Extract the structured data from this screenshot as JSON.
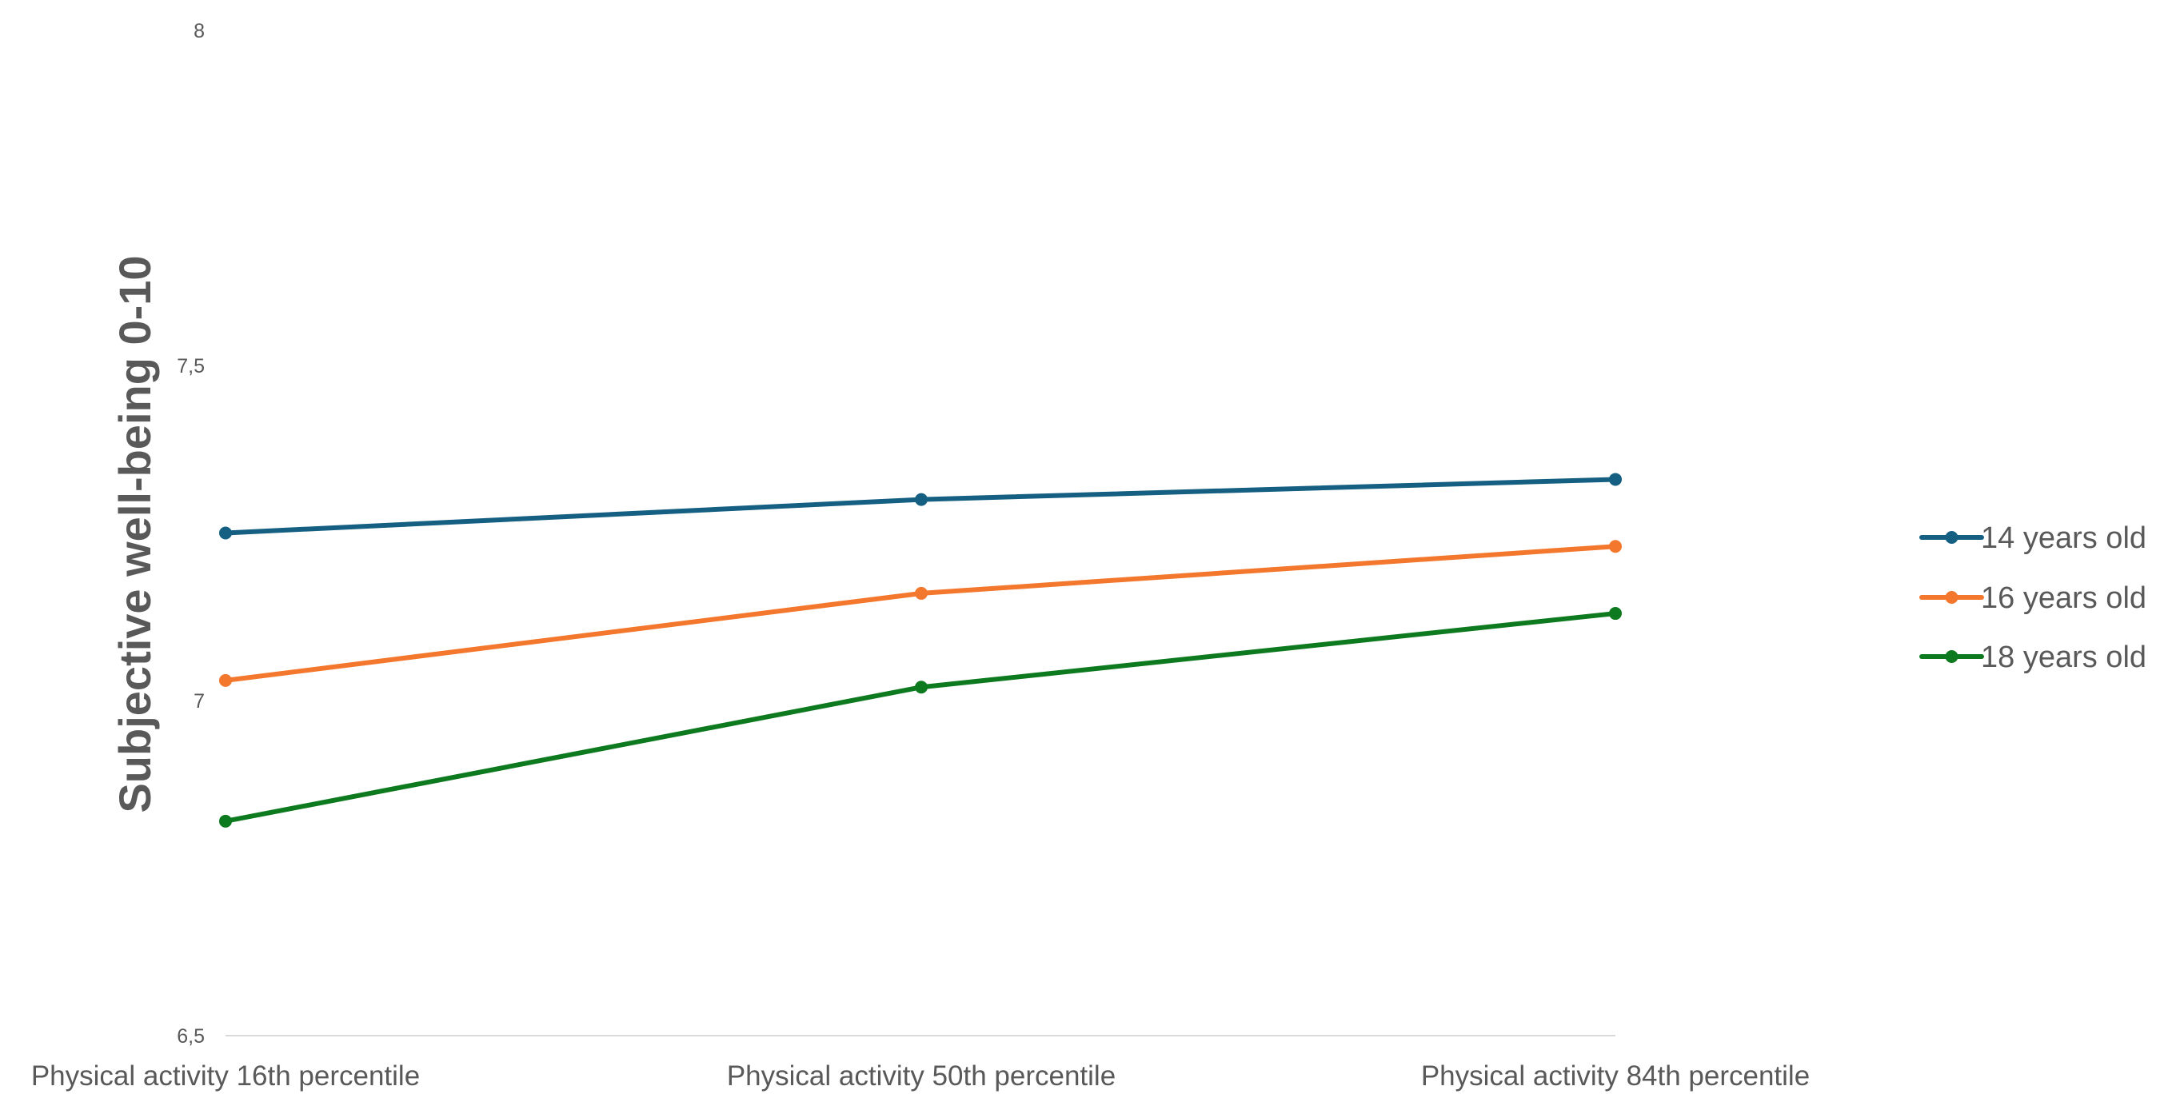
{
  "chart_data": {
    "type": "line",
    "title": "",
    "xlabel": "",
    "ylabel": "Subjective well-being 0-10",
    "categories": [
      "Physical activity 16th percentile",
      "Physical activity 50th percentile",
      "Physical activity 84th percentile"
    ],
    "ylim": [
      6.5,
      8
    ],
    "yticks": [
      "6,5",
      "7",
      "7,5",
      "8"
    ],
    "ytick_values": [
      6.5,
      7,
      7.5,
      8
    ],
    "grid": false,
    "legend_position": "right",
    "series": [
      {
        "name": "14 years old",
        "values": [
          7.25,
          7.3,
          7.33
        ],
        "color": "#156082"
      },
      {
        "name": "16 years old",
        "values": [
          7.03,
          7.16,
          7.23
        ],
        "color": "#F4772E"
      },
      {
        "name": "18 years old",
        "values": [
          6.82,
          7.02,
          7.13
        ],
        "color": "#0E7A1F"
      }
    ]
  }
}
